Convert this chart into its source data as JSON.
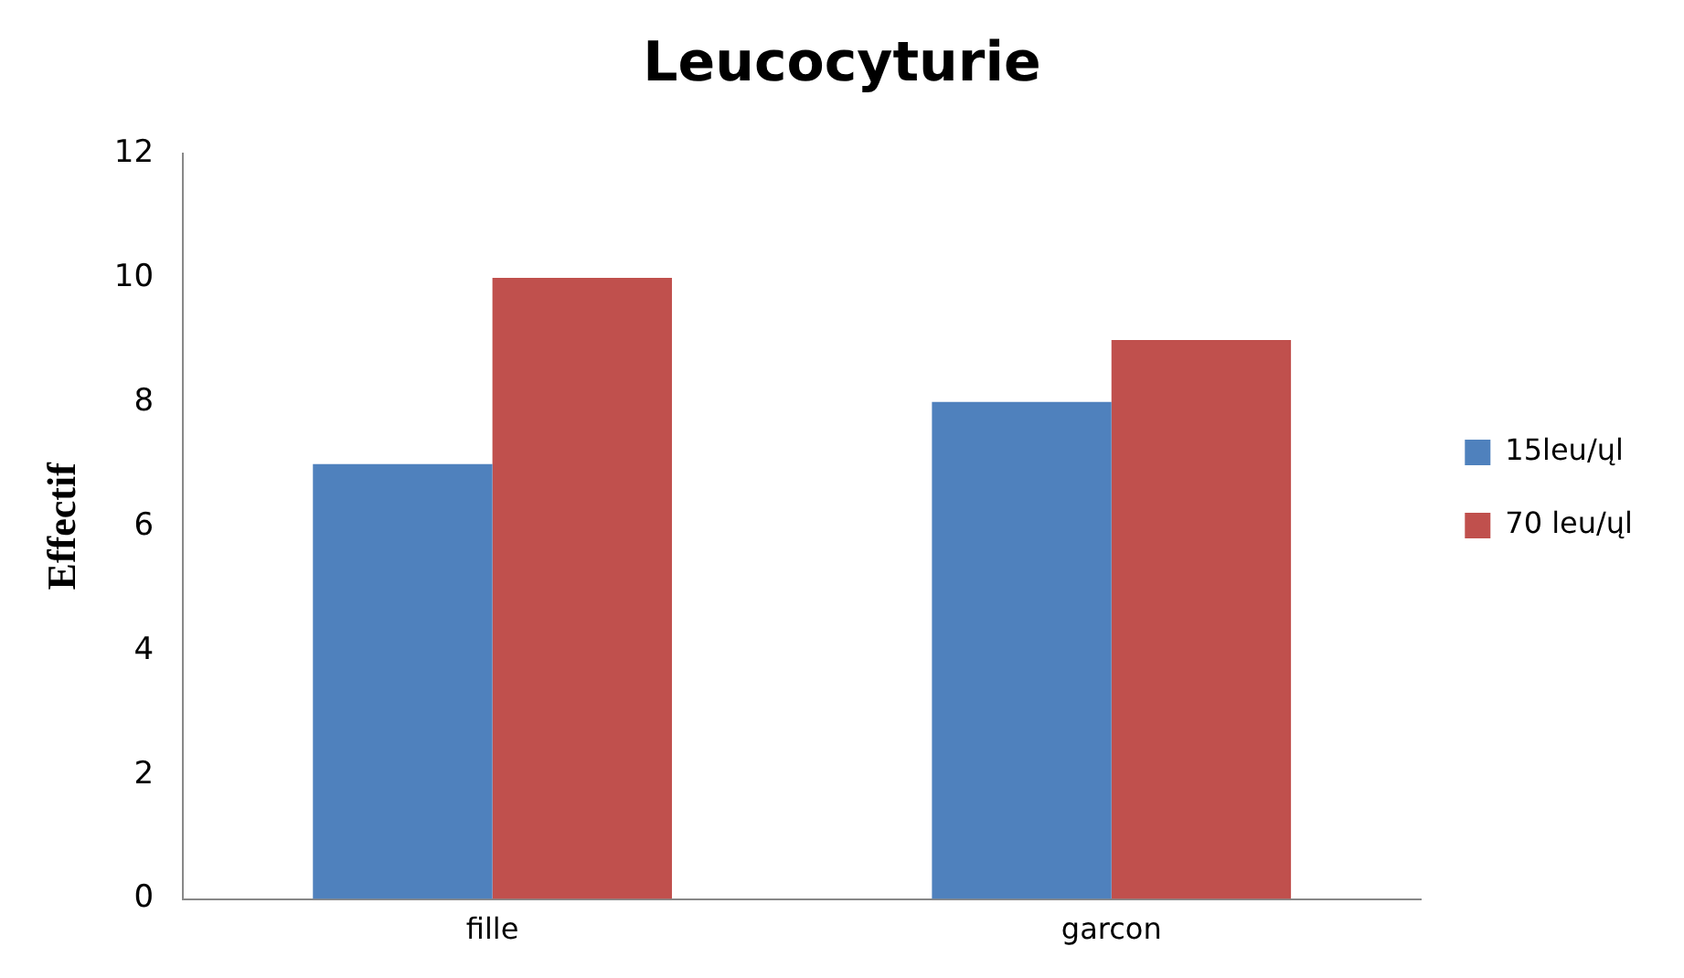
{
  "chart_data": {
    "type": "bar",
    "title": "Leucocyturie",
    "ylabel": "Effectif",
    "categories": [
      "fille",
      "garcon"
    ],
    "series": [
      {
        "name": "15leu/ųl",
        "color": "#4f81bd",
        "values": [
          7,
          8
        ]
      },
      {
        "name": "70 leu/ųl",
        "color": "#c0504d",
        "values": [
          10,
          9
        ]
      }
    ],
    "ylim": [
      0,
      12
    ],
    "yticks": [
      0,
      2,
      4,
      6,
      8,
      10,
      12
    ],
    "grid": false,
    "legend": "right"
  }
}
